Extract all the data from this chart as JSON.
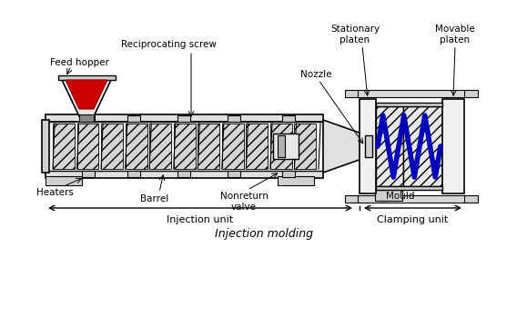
{
  "title": "Injection molding",
  "labels": {
    "feed_hopper": "Feed hopper",
    "reciprocating_screw": "Reciprocating screw",
    "nozzle": "Nozzle",
    "stationary_platen": "Stationary\nplaten",
    "movable_platen": "Movable\nplaten",
    "heaters": "Heaters",
    "barrel": "Barrel",
    "nonreturn_valve": "Nonreturn\nvalve",
    "mould": "Mould",
    "injection_unit": "Injection unit",
    "clamping_unit": "Clamping unit"
  },
  "colors": {
    "background": "#ffffff",
    "barrel_fill": "#f0f0f0",
    "barrel_outline": "#000000",
    "hopper_fill": "#e0e0e0",
    "plastic_fill": "#cc0000",
    "screw_hatch": "#c8c8c8",
    "mould_hatch": "#d0d0d0",
    "blue_plastic": "#0000cc",
    "plate_fill": "#f5f5f5",
    "nozzle_fill": "#e8e8e8"
  }
}
